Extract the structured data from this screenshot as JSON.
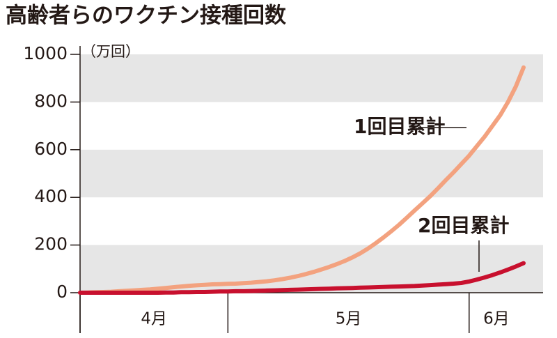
{
  "chart_data": {
    "type": "line",
    "title": "高齢者らのワクチン接種回数",
    "y_unit": "（万回）",
    "categories": [
      "4月",
      null,
      null,
      null,
      null,
      null,
      null,
      null,
      null,
      null,
      null,
      null,
      null,
      null,
      null,
      null,
      null,
      null,
      null,
      "5月",
      null,
      null,
      null,
      null,
      null,
      null,
      null,
      null,
      null,
      null,
      null,
      null,
      null,
      null,
      null,
      null,
      null,
      null,
      null,
      null,
      null,
      null,
      null,
      null,
      null,
      null,
      null,
      null,
      null,
      null,
      "6月",
      null,
      null,
      null,
      null,
      null,
      null,
      null
    ],
    "series": [
      {
        "name": "1回目累計",
        "color": "#f3a27f",
        "values": [
          0,
          1,
          2,
          3,
          4,
          6,
          8,
          10,
          12,
          14,
          17,
          20,
          23,
          26,
          29,
          31,
          33,
          35,
          36,
          37,
          38,
          40,
          42,
          45,
          48,
          52,
          57,
          63,
          70,
          78,
          87,
          97,
          108,
          120,
          133,
          148,
          165,
          185,
          208,
          232,
          258,
          285,
          315,
          345,
          375,
          405,
          438,
          472,
          505,
          540,
          575,
          615,
          655,
          700,
          745,
          800,
          865,
          945
        ]
      },
      {
        "name": "2回目累計",
        "color": "#c8102e",
        "values": [
          0,
          0,
          0,
          0,
          0,
          0,
          0,
          0,
          0,
          0,
          0,
          1,
          1,
          2,
          2,
          3,
          3,
          4,
          5,
          5,
          6,
          6,
          7,
          8,
          9,
          10,
          11,
          12,
          13,
          14,
          15,
          16,
          17,
          18,
          19,
          20,
          21,
          22,
          23,
          24,
          25,
          26,
          27,
          28,
          30,
          32,
          34,
          36,
          38,
          41,
          47,
          55,
          64,
          74,
          85,
          97,
          110,
          124
        ]
      }
    ],
    "ylim": [
      0,
      1000
    ],
    "yticks": [
      0,
      200,
      400,
      600,
      800,
      1000
    ],
    "grid": "bands"
  }
}
